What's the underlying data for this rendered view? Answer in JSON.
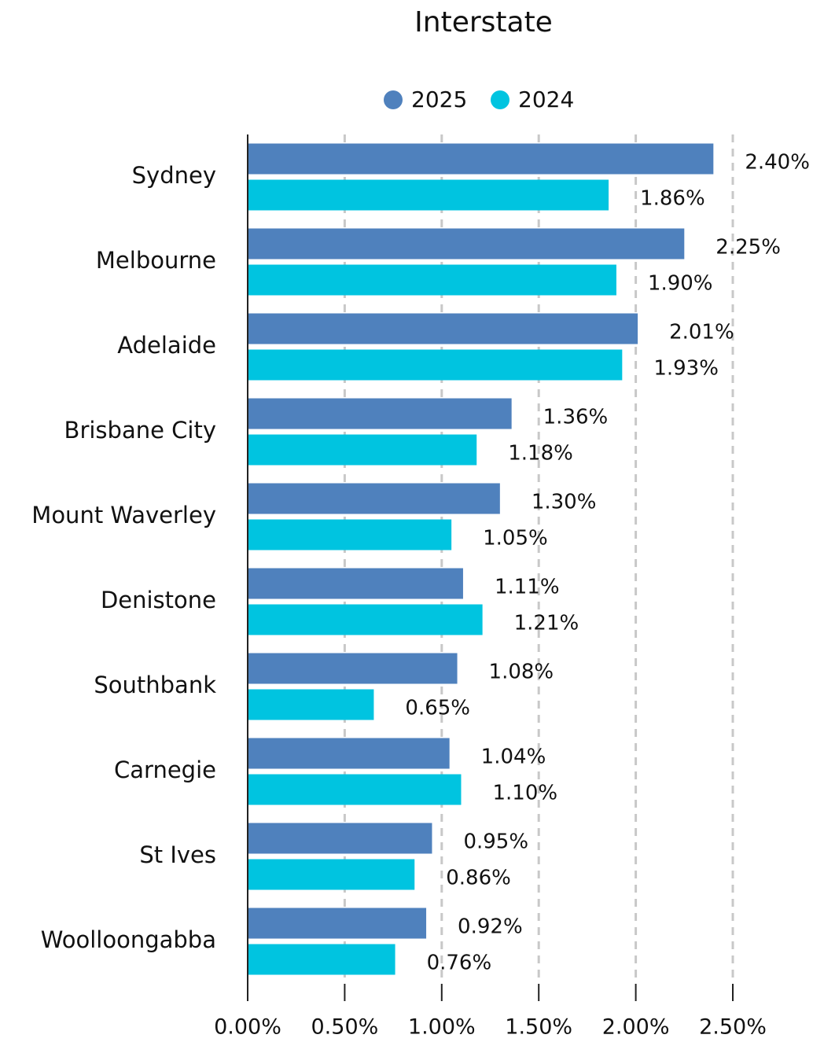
{
  "chart_data": {
    "type": "bar",
    "orientation": "horizontal",
    "title": "Interstate",
    "categories": [
      "Sydney",
      "Melbourne",
      "Adelaide",
      "Brisbane City",
      "Mount Waverley",
      "Denistone",
      "Southbank",
      "Carnegie",
      "St Ives",
      "Woolloongabba"
    ],
    "series": [
      {
        "name": "2025",
        "color": "#4f81bd",
        "values": [
          2.4,
          2.25,
          2.01,
          1.36,
          1.3,
          1.11,
          1.08,
          1.04,
          0.95,
          0.92
        ],
        "value_labels": [
          "2.40%",
          "2.25%",
          "2.01%",
          "1.36%",
          "1.30%",
          "1.11%",
          "1.08%",
          "1.04%",
          "0.95%",
          "0.92%"
        ]
      },
      {
        "name": "2024",
        "color": "#00c4e0",
        "values": [
          1.86,
          1.9,
          1.93,
          1.18,
          1.05,
          1.21,
          0.65,
          1.1,
          0.86,
          0.76
        ],
        "value_labels": [
          "1.86%",
          "1.90%",
          "1.93%",
          "1.18%",
          "1.05%",
          "1.21%",
          "0.65%",
          "1.10%",
          "0.86%",
          "0.76%"
        ]
      }
    ],
    "xlim": [
      0,
      2.5
    ],
    "xticks": [
      {
        "value": 0,
        "label": "0.00%"
      },
      {
        "value": 0.5,
        "label": "0.50%"
      },
      {
        "value": 1,
        "label": "1.00%"
      },
      {
        "value": 1.5,
        "label": "1.50%"
      },
      {
        "value": 2,
        "label": "2.00%"
      },
      {
        "value": 2.5,
        "label": "2.50%"
      }
    ],
    "grid": true,
    "legend": "top"
  }
}
